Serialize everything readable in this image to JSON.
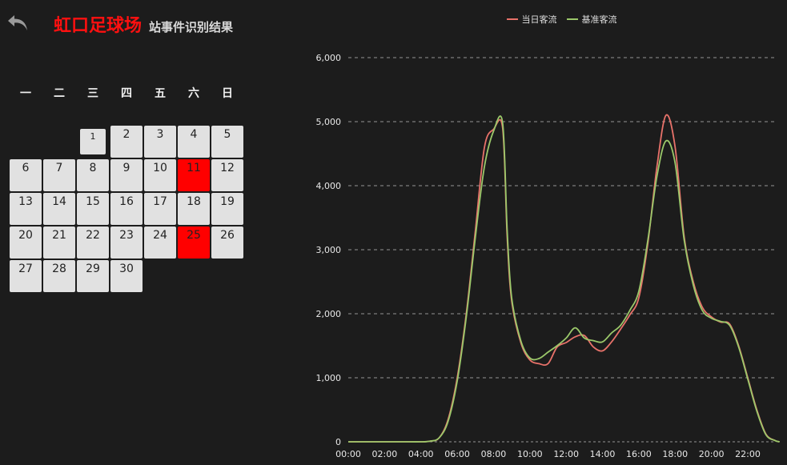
{
  "header": {
    "station_name": "虹口足球场",
    "subtitle": "站事件识别结果",
    "back_icon": "undo-arrow-icon"
  },
  "calendar": {
    "weekdays": [
      "一",
      "二",
      "三",
      "四",
      "五",
      "六",
      "日"
    ],
    "first_weekday_index": 2,
    "days": [
      1,
      2,
      3,
      4,
      5,
      6,
      7,
      8,
      9,
      10,
      11,
      12,
      13,
      14,
      15,
      16,
      17,
      18,
      19,
      20,
      21,
      22,
      23,
      24,
      25,
      26,
      27,
      28,
      29,
      30
    ],
    "selected_day": 1,
    "event_days": [
      11,
      25
    ],
    "colors": {
      "cell": "#e1e1e1",
      "event": "#ff0000"
    }
  },
  "chart_data": {
    "type": "line",
    "title": "",
    "xlabel": "",
    "ylabel": "",
    "ylim": [
      0,
      6000
    ],
    "yticks": [
      "0",
      "1,000",
      "2,000",
      "3,000",
      "4,000",
      "5,000",
      "6,000"
    ],
    "xticks": [
      "00:00",
      "02:00",
      "04:00",
      "06:00",
      "08:00",
      "10:00",
      "12:00",
      "14:00",
      "16:00",
      "18:00",
      "20:00",
      "22:00"
    ],
    "grid": "horizontal-dashed",
    "legend_position": "top",
    "x_hours": [
      0,
      1,
      2,
      3,
      4,
      4.5,
      5,
      5.5,
      6,
      6.5,
      7,
      7.5,
      8,
      8.5,
      8.75,
      9,
      9.5,
      10,
      10.5,
      11,
      11.5,
      12,
      12.5,
      13,
      13.5,
      14,
      14.5,
      15,
      15.5,
      16,
      16.5,
      17,
      17.5,
      18,
      18.5,
      19,
      19.5,
      20,
      20.5,
      21,
      21.5,
      22,
      22.5,
      23,
      23.5,
      23.75
    ],
    "series": [
      {
        "name": "当日客流",
        "color": "#e8726a",
        "values": [
          0,
          0,
          0,
          0,
          0,
          10,
          60,
          350,
          1000,
          2000,
          3300,
          4600,
          4880,
          4900,
          3200,
          2200,
          1550,
          1280,
          1220,
          1220,
          1480,
          1550,
          1640,
          1660,
          1480,
          1420,
          1560,
          1760,
          1980,
          2250,
          3100,
          4300,
          5100,
          4600,
          3200,
          2500,
          2100,
          1950,
          1870,
          1840,
          1500,
          1000,
          500,
          120,
          20,
          0
        ]
      },
      {
        "name": "基准客流",
        "color": "#9bc86a",
        "values": [
          0,
          0,
          0,
          0,
          0,
          10,
          60,
          320,
          950,
          1950,
          3200,
          4300,
          4850,
          4980,
          3300,
          2250,
          1580,
          1310,
          1300,
          1400,
          1500,
          1620,
          1780,
          1620,
          1580,
          1560,
          1700,
          1820,
          2050,
          2350,
          3150,
          4150,
          4700,
          4350,
          3150,
          2450,
          2050,
          1930,
          1880,
          1820,
          1480,
          980,
          480,
          110,
          20,
          0
        ]
      }
    ]
  }
}
